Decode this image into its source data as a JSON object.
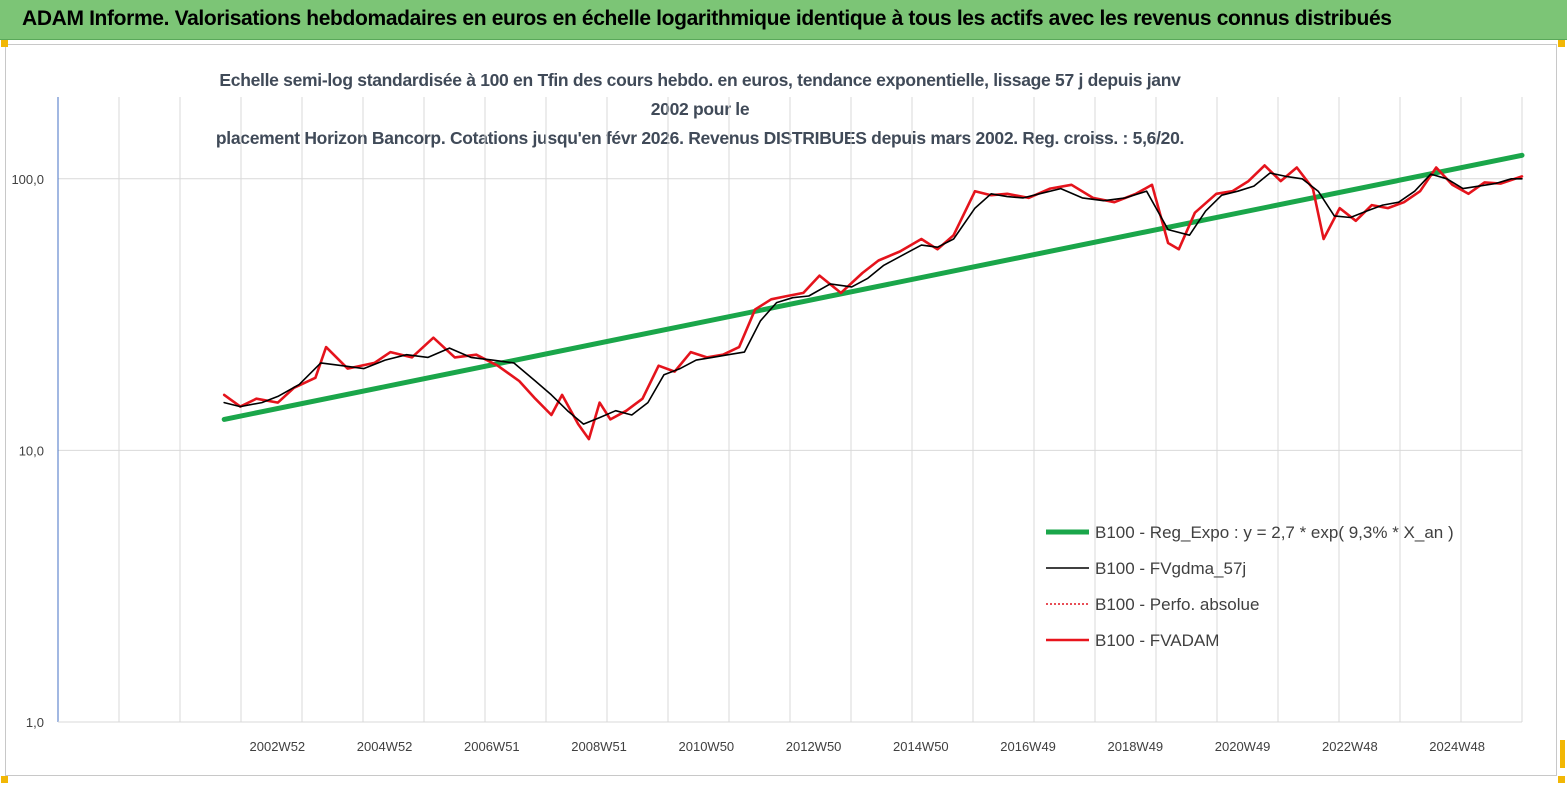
{
  "banner": {
    "title": "ADAM Informe. Valorisations hebdomadaires en euros en échelle logarithmique identique à tous les actifs avec les revenus connus distribués"
  },
  "colors": {
    "banner_bg": "#7cc576",
    "handle": "#f2b705",
    "title_text": "#404a58",
    "regression": "#1aa64a",
    "smoothed": "#000000",
    "perf_absolue": "#e0141e",
    "fvadam": "#e8141c",
    "grid": "#d9d9d9",
    "axis": "#4472c4"
  },
  "chart_data": {
    "type": "line",
    "title_line1": "Echelle semi-log standardisée à 100 en Tfin des cours hebdo. en euros, tendance exponentielle, lissage 57 j depuis janv 2002 pour le",
    "title_line2": "placement Horizon Bancorp. Cotations jusqu'en févr 2026. Revenus DISTRIBUES depuis mars 2002. Reg. croiss. : 5,6/20.",
    "y_scale": "log",
    "ylim": [
      1,
      200
    ],
    "y_ticks": [
      {
        "value": 1,
        "label": "1,0"
      },
      {
        "value": 10,
        "label": "10,0"
      },
      {
        "value": 100,
        "label": "100,0"
      }
    ],
    "x_categories": 24,
    "x_range_years": [
      1998.9,
      2026.2
    ],
    "x_tick_labels": [
      {
        "year": 2002.99,
        "label": "2002W52"
      },
      {
        "year": 2004.99,
        "label": "2004W52"
      },
      {
        "year": 2006.99,
        "label": "2006W51"
      },
      {
        "year": 2008.99,
        "label": "2008W51"
      },
      {
        "year": 2010.99,
        "label": "2010W50"
      },
      {
        "year": 2012.99,
        "label": "2012W50"
      },
      {
        "year": 2014.99,
        "label": "2014W50"
      },
      {
        "year": 2016.99,
        "label": "2016W49"
      },
      {
        "year": 2018.99,
        "label": "2018W49"
      },
      {
        "year": 2020.99,
        "label": "2020W49"
      },
      {
        "year": 2022.99,
        "label": "2022W48"
      },
      {
        "year": 2024.99,
        "label": "2024W48"
      }
    ],
    "grid": true,
    "legend_position": "right",
    "series": [
      {
        "name": "B100 - Reg_Expo : y = 2,7 * exp( 9,3% *  X_an )",
        "key": "reg",
        "style": "thick-line",
        "x": [
          2002.0,
          2026.2
        ],
        "y": [
          13.0,
          122
        ]
      },
      {
        "name": "B100 - FVgdma_57j",
        "key": "smooth",
        "style": "line",
        "x": [
          2002.0,
          2002.3,
          2002.7,
          2003.0,
          2003.4,
          2003.8,
          2004.2,
          2004.6,
          2005.0,
          2005.4,
          2005.8,
          2006.2,
          2006.6,
          2007.0,
          2007.4,
          2007.8,
          2008.1,
          2008.4,
          2008.7,
          2009.0,
          2009.3,
          2009.6,
          2009.9,
          2010.2,
          2010.5,
          2010.8,
          2011.1,
          2011.4,
          2011.7,
          2012.0,
          2012.3,
          2012.6,
          2012.9,
          2013.3,
          2013.7,
          2014.0,
          2014.3,
          2014.7,
          2015.0,
          2015.3,
          2015.6,
          2016.0,
          2016.3,
          2016.6,
          2016.9,
          2017.2,
          2017.6,
          2018.0,
          2018.4,
          2018.8,
          2019.2,
          2019.6,
          2020.0,
          2020.3,
          2020.6,
          2020.9,
          2021.2,
          2021.5,
          2021.8,
          2022.1,
          2022.4,
          2022.7,
          2023.0,
          2023.3,
          2023.6,
          2023.9,
          2024.2,
          2024.5,
          2024.8,
          2025.1,
          2025.4,
          2025.7,
          2026.0,
          2026.2
        ],
        "y": [
          15.0,
          14.5,
          15.0,
          15.8,
          17.5,
          21.0,
          20.5,
          20.0,
          21.5,
          22.5,
          22.0,
          23.8,
          22.0,
          21.5,
          21.0,
          18.0,
          16.0,
          14.0,
          12.5,
          13.2,
          14.0,
          13.5,
          15.0,
          19.0,
          20.0,
          21.5,
          22.0,
          22.5,
          23.0,
          30.0,
          35.0,
          36.5,
          37.0,
          41.0,
          40.0,
          43.0,
          48.0,
          53.0,
          57.0,
          56.0,
          60.0,
          78.0,
          88.0,
          86.0,
          85.0,
          88.0,
          92.0,
          85.0,
          83.0,
          85.0,
          90.0,
          65.0,
          62.0,
          76.0,
          87.0,
          90.0,
          94.0,
          105.0,
          102.0,
          100.0,
          90.0,
          73.0,
          72.0,
          76.0,
          80.0,
          82.0,
          90.0,
          104.0,
          100.0,
          92.0,
          94.0,
          96.0,
          100.0,
          100.0
        ]
      },
      {
        "name": "B100 - Perfo. absolue",
        "key": "perf",
        "style": "dotted",
        "x": [
          2002.0,
          2002.3,
          2002.6,
          2003.0,
          2003.3,
          2003.7,
          2003.9,
          2004.3,
          2004.8,
          2005.1,
          2005.5,
          2005.9,
          2006.3,
          2006.7,
          2007.1,
          2007.5,
          2007.8,
          2008.1,
          2008.3,
          2008.6,
          2008.8,
          2009.0,
          2009.2,
          2009.5,
          2009.8,
          2010.1,
          2010.4,
          2010.7,
          2011.0,
          2011.3,
          2011.6,
          2011.9,
          2012.2,
          2012.5,
          2012.8,
          2013.1,
          2013.5,
          2013.9,
          2014.2,
          2014.6,
          2015.0,
          2015.3,
          2015.6,
          2016.0,
          2016.3,
          2016.6,
          2017.0,
          2017.4,
          2017.8,
          2018.2,
          2018.6,
          2019.0,
          2019.3,
          2019.6,
          2019.8,
          2020.1,
          2020.5,
          2020.8,
          2021.1,
          2021.4,
          2021.7,
          2022.0,
          2022.3,
          2022.5,
          2022.8,
          2023.1,
          2023.4,
          2023.7,
          2024.0,
          2024.3,
          2024.6,
          2024.9,
          2025.2,
          2025.5,
          2025.8,
          2026.2
        ],
        "y": [
          16.0,
          14.5,
          15.5,
          15.0,
          17.0,
          18.5,
          24.0,
          20.0,
          21.0,
          23.0,
          22.0,
          26.0,
          22.0,
          22.5,
          20.5,
          18.0,
          15.5,
          13.5,
          16.0,
          12.5,
          11.0,
          15.0,
          13.0,
          14.0,
          15.5,
          20.5,
          19.5,
          23.0,
          22.0,
          22.5,
          24.0,
          33.0,
          36.0,
          37.0,
          38.0,
          44.0,
          38.0,
          45.0,
          50.0,
          54.0,
          60.0,
          55.0,
          62.0,
          90.0,
          87.0,
          88.0,
          85.0,
          92.0,
          95.0,
          85.0,
          82.0,
          88.0,
          95.0,
          58.0,
          55.0,
          75.0,
          88.0,
          90.0,
          98.0,
          112.0,
          98.0,
          110.0,
          92.0,
          60.0,
          78.0,
          70.0,
          80.0,
          78.0,
          82.0,
          90.0,
          110.0,
          95.0,
          88.0,
          97.0,
          96.0,
          102.0
        ]
      },
      {
        "name": "B100 - FVADAM",
        "key": "fvadam",
        "style": "thick-line",
        "x": [
          2002.0,
          2002.3,
          2002.6,
          2003.0,
          2003.3,
          2003.7,
          2003.9,
          2004.3,
          2004.8,
          2005.1,
          2005.5,
          2005.9,
          2006.3,
          2006.7,
          2007.1,
          2007.5,
          2007.8,
          2008.1,
          2008.3,
          2008.6,
          2008.8,
          2009.0,
          2009.2,
          2009.5,
          2009.8,
          2010.1,
          2010.4,
          2010.7,
          2011.0,
          2011.3,
          2011.6,
          2011.9,
          2012.2,
          2012.5,
          2012.8,
          2013.1,
          2013.5,
          2013.9,
          2014.2,
          2014.6,
          2015.0,
          2015.3,
          2015.6,
          2016.0,
          2016.3,
          2016.6,
          2017.0,
          2017.4,
          2017.8,
          2018.2,
          2018.6,
          2019.0,
          2019.3,
          2019.6,
          2019.8,
          2020.1,
          2020.5,
          2020.8,
          2021.1,
          2021.4,
          2021.7,
          2022.0,
          2022.3,
          2022.5,
          2022.8,
          2023.1,
          2023.4,
          2023.7,
          2024.0,
          2024.3,
          2024.6,
          2024.9,
          2025.2,
          2025.5,
          2025.8,
          2026.2
        ],
        "y": [
          16.0,
          14.5,
          15.5,
          15.0,
          17.0,
          18.5,
          24.0,
          20.0,
          21.0,
          23.0,
          22.0,
          26.0,
          22.0,
          22.5,
          20.5,
          18.0,
          15.5,
          13.5,
          16.0,
          12.5,
          11.0,
          15.0,
          13.0,
          14.0,
          15.5,
          20.5,
          19.5,
          23.0,
          22.0,
          22.5,
          24.0,
          33.0,
          36.0,
          37.0,
          38.0,
          44.0,
          38.0,
          45.0,
          50.0,
          54.0,
          60.0,
          55.0,
          62.0,
          90.0,
          87.0,
          88.0,
          85.0,
          92.0,
          95.0,
          85.0,
          82.0,
          88.0,
          95.0,
          58.0,
          55.0,
          75.0,
          88.0,
          90.0,
          98.0,
          112.0,
          98.0,
          110.0,
          92.0,
          60.0,
          78.0,
          70.0,
          80.0,
          78.0,
          82.0,
          90.0,
          110.0,
          95.0,
          88.0,
          97.0,
          96.0,
          102.0
        ]
      }
    ]
  }
}
